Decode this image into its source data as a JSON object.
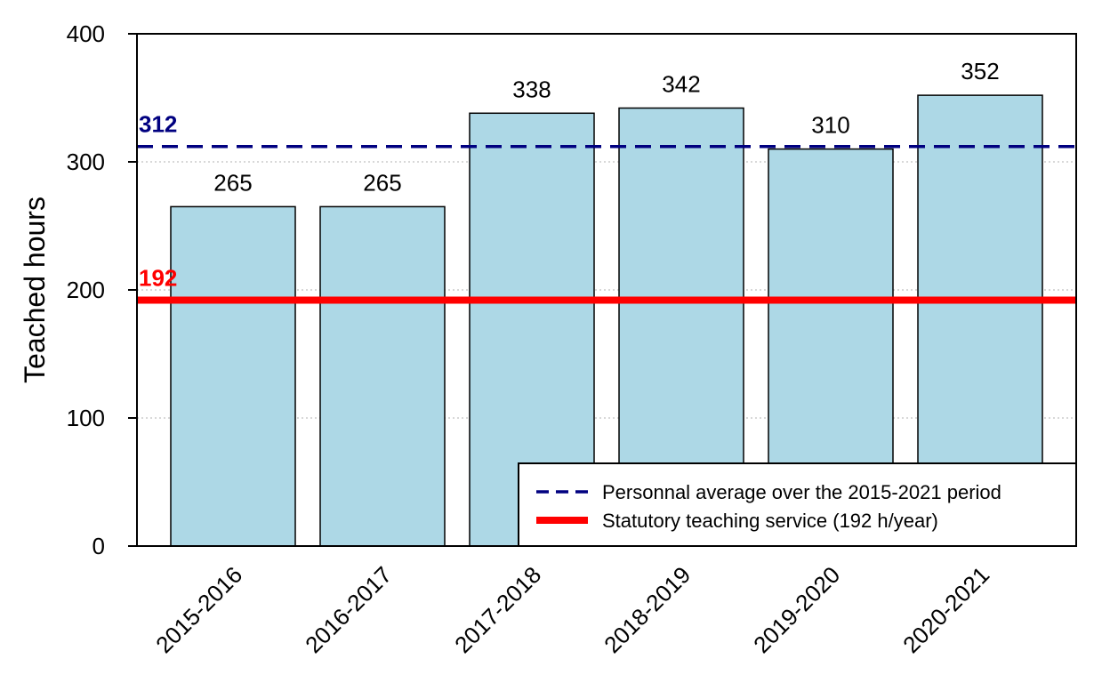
{
  "chart_data": {
    "type": "bar",
    "categories": [
      "2015-2016",
      "2016-2017",
      "2017-2018",
      "2018-2019",
      "2019-2020",
      "2020-2021"
    ],
    "values": [
      265,
      265,
      338,
      342,
      310,
      352
    ],
    "data_labels": [
      "265",
      "265",
      "338",
      "342",
      "310",
      "352"
    ],
    "title": "",
    "xlabel": "",
    "ylabel": "Teached hours",
    "ylim": [
      0,
      400
    ],
    "yticks": [
      0,
      100,
      200,
      300,
      400
    ],
    "ytick_labels": [
      "0",
      "100",
      "200",
      "300",
      "400"
    ],
    "grid": "horizontal dotted",
    "bar_color": "#add8e6",
    "reference_lines": [
      {
        "name": "Personnal average over the 2015-2021 period",
        "value": 312,
        "label": "312",
        "style": "dashed",
        "color": "#000080"
      },
      {
        "name": "Statutory teaching service (192 h/year)",
        "value": 192,
        "label": "192",
        "style": "solid",
        "color": "#ff0000"
      }
    ],
    "legend_position": "bottom-right"
  }
}
